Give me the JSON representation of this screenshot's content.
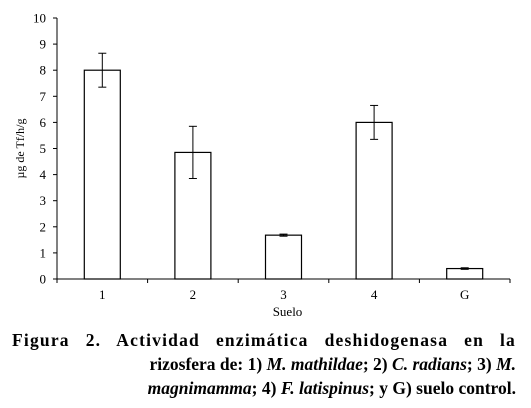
{
  "chart_data": {
    "type": "bar",
    "categories": [
      "1",
      "2",
      "3",
      "4",
      "G"
    ],
    "values": [
      8.0,
      4.85,
      1.68,
      6.0,
      0.4
    ],
    "errors": [
      0.65,
      1.0,
      0.04,
      0.65,
      0.03
    ],
    "xlabel": "Suelo",
    "ylabel": "µg de Tf/h/g",
    "ylim": [
      0,
      10
    ],
    "yticks": [
      "0",
      "1",
      "2",
      "3",
      "4",
      "5",
      "6",
      "7",
      "8",
      "9",
      "10"
    ],
    "grid": false,
    "bar_fill": "#ffffff",
    "bar_stroke": "#000000"
  },
  "caption": {
    "line1": "Figura 2. Actividad enzimática deshidogenasa en la",
    "line2_a": "rizosfera de: 1) ",
    "line2_b": "M. mathildae",
    "line2_c": "; 2) ",
    "line2_d": "C. radians",
    "line2_e": "; 3) ",
    "line2_f": "M.",
    "line3_a": "magnimamma",
    "line3_b": "; 4) ",
    "line3_c": "F. latispinus",
    "line3_d": "; y G) suelo control."
  }
}
